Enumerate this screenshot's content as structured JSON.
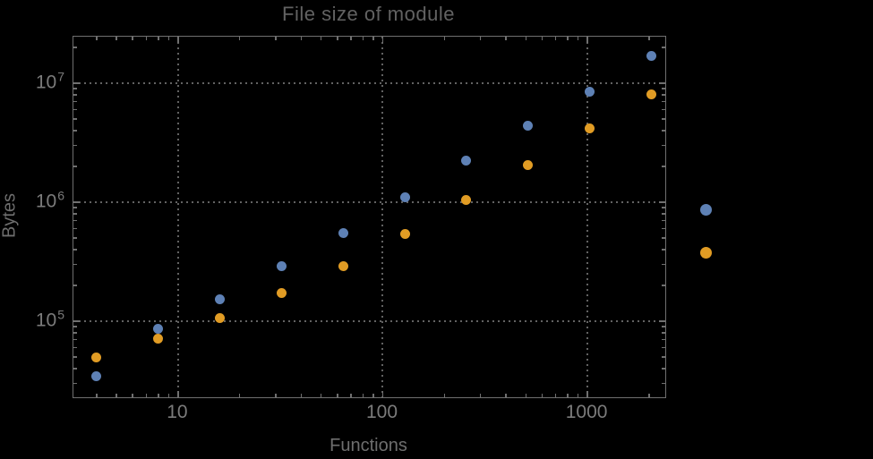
{
  "chart_data": {
    "type": "scatter",
    "title": "File size of module",
    "xlabel": "Functions",
    "ylabel": "Bytes",
    "xscale": "log",
    "yscale": "log",
    "xlim": [
      3.08,
      2400
    ],
    "ylim": [
      23000,
      24600000
    ],
    "grid": true,
    "grid_style": "dotted",
    "x_gridlines": [
      10,
      100,
      1000
    ],
    "y_gridlines": [
      100000,
      1000000,
      10000000
    ],
    "xticks": [
      {
        "value": 10,
        "label": "10"
      },
      {
        "value": 100,
        "label": "100"
      },
      {
        "value": 1000,
        "label": "1000"
      }
    ],
    "yticks": [
      {
        "value": 100000,
        "base": "10",
        "exp": "5"
      },
      {
        "value": 1000000,
        "base": "10",
        "exp": "6"
      },
      {
        "value": 10000000,
        "base": "10",
        "exp": "7"
      }
    ],
    "series": [
      {
        "name": "blue-series",
        "color": "#5e81b5",
        "points": [
          [
            4,
            34800
          ],
          [
            8,
            87000
          ],
          [
            16,
            154000
          ],
          [
            32,
            292000
          ],
          [
            64,
            555000
          ],
          [
            128,
            1110000
          ],
          [
            256,
            2220000
          ],
          [
            512,
            4360000
          ],
          [
            1024,
            8550000
          ],
          [
            2048,
            17100000
          ]
        ]
      },
      {
        "name": "orange-series",
        "color": "#e19c24",
        "points": [
          [
            4,
            50000
          ],
          [
            8,
            72000
          ],
          [
            16,
            107000
          ],
          [
            32,
            174000
          ],
          [
            64,
            292000
          ],
          [
            128,
            546000
          ],
          [
            256,
            1040000
          ],
          [
            512,
            2070000
          ],
          [
            1024,
            4140000
          ],
          [
            2048,
            8120000
          ]
        ]
      }
    ],
    "legend": {
      "position": "right-of-frame",
      "entries": [
        {
          "marker_color": "#5e81b5",
          "label": ""
        },
        {
          "marker_color": "#e19c24",
          "label": ""
        }
      ]
    }
  },
  "colors": {
    "background": "#000000",
    "frame": "#6f6f6f",
    "gridline": "#626262",
    "tick": "#707070",
    "tick_label": "#7b7b7b",
    "title_text": "#626262",
    "axis_label_text": "#6e6e6e",
    "series_blue": "#5e81b5",
    "series_orange": "#e19c24"
  }
}
